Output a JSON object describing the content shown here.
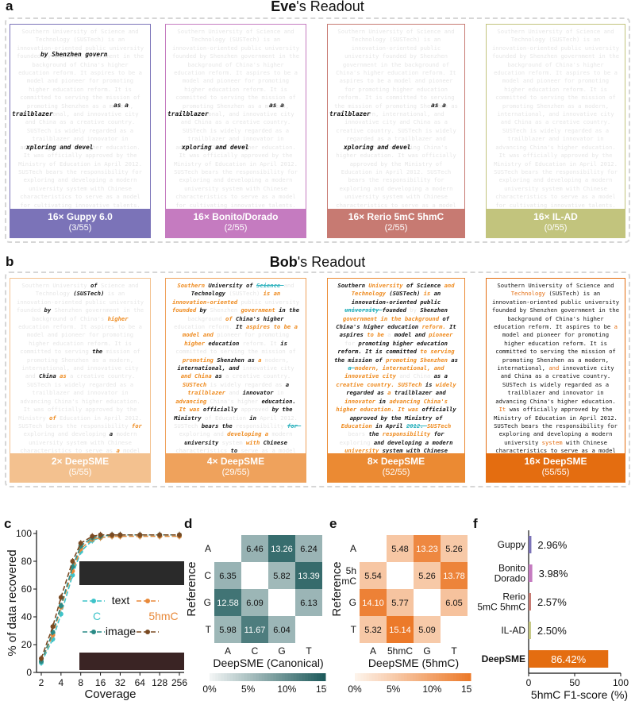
{
  "panel_letters": {
    "a": "a",
    "b": "b",
    "c": "c",
    "d": "d",
    "e": "e",
    "f": "f"
  },
  "eve": {
    "title_bold": "Eve",
    "title_rest": "'s Readout",
    "fragments": {
      "f1": "by Shenzhen govern",
      "f2": "as a",
      "f3": "trailblazer",
      "f4": "xploring and devel"
    },
    "cards": [
      {
        "label_bold": "16×",
        "label": " Guppy 6.0",
        "score": "(3/55)",
        "color": "#7b73b8"
      },
      {
        "label_bold": "16×",
        "label": " Bonito/Dorado",
        "score": "(2/55)",
        "color": "#c57bc0"
      },
      {
        "label_bold": "16×",
        "label": " Rerio 5mC 5hmC",
        "score": "(2/55)",
        "color": "#c77a72"
      },
      {
        "label_bold": "16×",
        "label": " IL-AD",
        "score": "(0/55)",
        "color": "#c2c47d"
      }
    ]
  },
  "bob": {
    "title_bold": "Bob",
    "title_rest": "'s Readout",
    "cards": [
      {
        "label_bold": "2×",
        "label": " DeepSME",
        "score": "(5/55)",
        "color": "#f3c18f"
      },
      {
        "label_bold": "4×",
        "label": " DeepSME",
        "score": "(29/55)",
        "color": "#efa25c"
      },
      {
        "label_bold": "8×",
        "label": " DeepSME",
        "score": "(52/55)",
        "color": "#eb8a33"
      },
      {
        "label_bold": "16×",
        "label": " DeepSME",
        "score": "(55/55)",
        "color": "#e46d10"
      }
    ],
    "full_text": "Southern University of Science and Technology (SUSTech) is an innovation-oriented public university founded by Shenzhen government in the background of China's higher education reform. It aspires to be a model and pioneer for promoting higher education reform. It is committed to serving the mission of promoting Shenzhen as a modern, international, and innovative city and China as a creative country. SUSTech is widely regarded as a trailblazer and innovator in advancing China's higher education. It was officially approved by the Ministry of Education in April 2012. SUSTech bears the responsibility for exploring and developing a modern university system with Chinese characteristics to serve as a model for cultivating innovative talents. SUSTech aims at a globally renowned university that contributes to the advancement of science and technology. It nurtures promising and creative leaders who excel in interdisciplinary research and creating knowledge for the world."
  },
  "chart_data": [
    {
      "type": "line",
      "panel": "c",
      "xlabel": "Coverage",
      "ylabel": "% of data recovered",
      "x": [
        2,
        3,
        4,
        6,
        8,
        12,
        16,
        24,
        32,
        64,
        128,
        256
      ],
      "x_ticks": [
        "2",
        "4",
        "8",
        "16",
        "32",
        "64",
        "128",
        "256"
      ],
      "ylim": [
        0,
        100
      ],
      "y_ticks": [
        "0",
        "20",
        "40",
        "60",
        "80",
        "100"
      ],
      "legend": {
        "text": "text",
        "image": "image",
        "c": "C",
        "hmc": "5hmC"
      },
      "series": [
        {
          "name": "text C",
          "color": "#3ec3c9",
          "values": [
            7,
            24,
            42,
            70,
            87,
            95,
            97,
            98,
            98,
            98,
            98,
            98
          ]
        },
        {
          "name": "text 5hmC",
          "color": "#e8893a",
          "values": [
            8,
            27,
            47,
            73,
            89,
            96,
            97,
            98,
            98,
            98,
            98,
            98
          ]
        },
        {
          "name": "image C",
          "color": "#2a8a86",
          "values": [
            8,
            29,
            48,
            76,
            91,
            97,
            98,
            99,
            99,
            99,
            99,
            99
          ]
        },
        {
          "name": "image 5hmC",
          "color": "#7a4a22",
          "values": [
            10,
            33,
            54,
            80,
            93,
            98,
            99,
            99,
            99,
            99,
            99,
            99
          ]
        }
      ]
    },
    {
      "type": "heatmap",
      "panel": "d",
      "xlabel": "DeepSME (Canonical)",
      "ylabel": "Reference",
      "rows": [
        "A",
        "C",
        "G",
        "T"
      ],
      "cols": [
        "A",
        "C",
        "G",
        "T"
      ],
      "values": [
        [
          null,
          6.46,
          13.26,
          6.24
        ],
        [
          6.35,
          null,
          5.82,
          13.39
        ],
        [
          12.58,
          6.09,
          null,
          6.13
        ],
        [
          5.98,
          11.67,
          6.04,
          null
        ]
      ],
      "colorbar_ticks": [
        "0%",
        "5%",
        "10%",
        "15%"
      ]
    },
    {
      "type": "heatmap",
      "panel": "e",
      "xlabel": "DeepSME (5hmC)",
      "ylabel": "Reference",
      "rows": [
        "A",
        "5hmC",
        "G",
        "T"
      ],
      "cols": [
        "A",
        "5hmC",
        "G",
        "T"
      ],
      "values": [
        [
          null,
          5.48,
          13.23,
          5.26
        ],
        [
          5.54,
          null,
          5.26,
          13.78
        ],
        [
          14.1,
          5.77,
          null,
          6.05
        ],
        [
          5.32,
          15.14,
          5.09,
          null
        ]
      ],
      "colorbar_ticks": [
        "0%",
        "5%",
        "10%",
        "15%"
      ]
    },
    {
      "type": "bar",
      "panel": "f",
      "xlabel": "5hmC F1-score (%)",
      "categories": [
        "Guppy",
        "Bonito Dorado",
        "Rerio 5mC 5hmC",
        "IL-AD",
        "DeepSME"
      ],
      "values": [
        2.96,
        3.98,
        2.57,
        2.5,
        86.42
      ],
      "value_labels": [
        "2.96%",
        "3.98%",
        "2.57%",
        "2.50%",
        "86.42%"
      ],
      "colors": [
        "#7b73b8",
        "#c57bc0",
        "#c77a72",
        "#c2c47d",
        "#e46d10"
      ],
      "xlim": [
        0,
        100
      ],
      "x_ticks": [
        "0",
        "50",
        "100"
      ]
    }
  ]
}
